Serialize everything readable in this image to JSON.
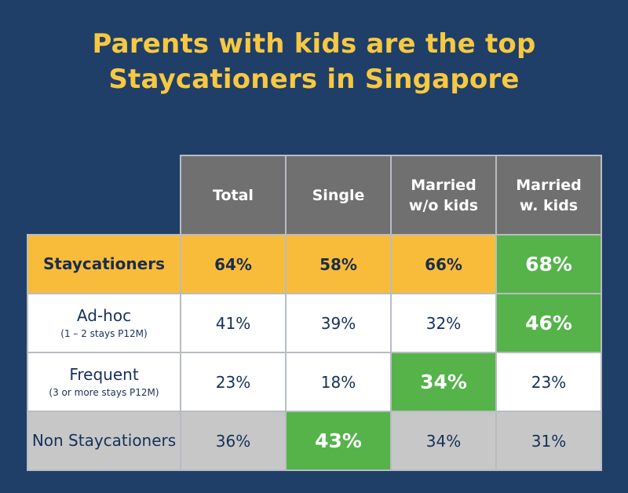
{
  "title": {
    "line1": "Parents with kids are the top",
    "line2": "Staycationers in Singapore"
  },
  "chart_data": {
    "type": "table",
    "columns": [
      {
        "line1": "Total",
        "line2": ""
      },
      {
        "line1": "Single",
        "line2": ""
      },
      {
        "line1": "Married",
        "line2": "w/o kids"
      },
      {
        "line1": "Married",
        "line2": "w. kids"
      }
    ],
    "rows": [
      {
        "label": "Staycationers",
        "sublabel": "",
        "values": [
          "64%",
          "58%",
          "66%",
          "68%"
        ],
        "highlight_index": 3,
        "row_color": "#f9bc3a"
      },
      {
        "label": "Ad-hoc",
        "sublabel": "(1 – 2 stays P12M)",
        "values": [
          "41%",
          "39%",
          "32%",
          "46%"
        ],
        "highlight_index": 3,
        "row_color": "#ffffff"
      },
      {
        "label": "Frequent",
        "sublabel": "(3 or more stays P12M)",
        "values": [
          "23%",
          "18%",
          "34%",
          "23%"
        ],
        "highlight_index": 2,
        "row_color": "#ffffff"
      },
      {
        "label": "Non Staycationers",
        "sublabel": "",
        "values": [
          "36%",
          "43%",
          "34%",
          "31%"
        ],
        "highlight_index": 1,
        "row_color": "#c7c7c7"
      }
    ],
    "highlight_color": "#55b34a",
    "header_color": "#707070",
    "background_color": "#1f3f68",
    "title_color": "#f7c841"
  }
}
